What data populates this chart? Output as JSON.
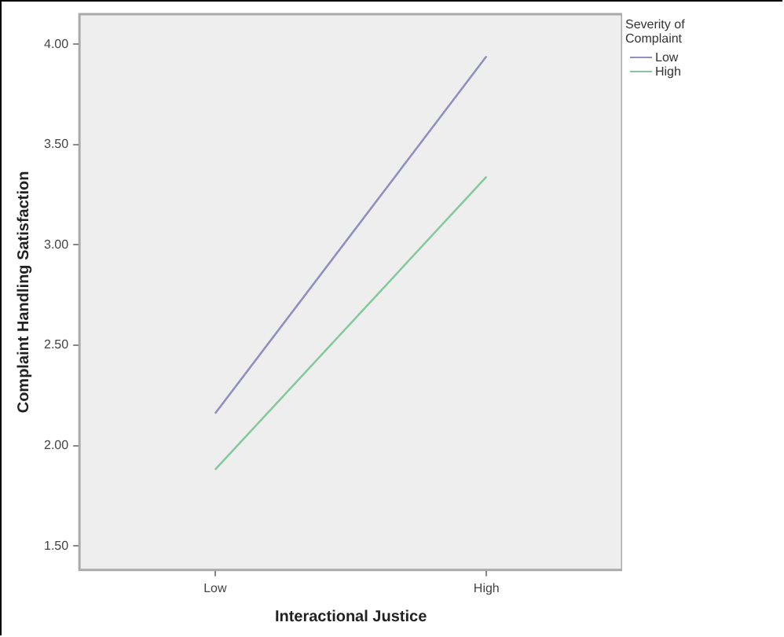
{
  "chart_data": {
    "type": "line",
    "xlabel": "Interactional Justice",
    "ylabel": "Complaint Handling Satisfaction",
    "legend_title": "Severity of Complaint",
    "categories": [
      "Low",
      "High"
    ],
    "series": [
      {
        "name": "Low",
        "color": "#8f8fc0",
        "values": [
          2.16,
          3.94
        ]
      },
      {
        "name": "High",
        "color": "#86c99c",
        "values": [
          1.88,
          3.34
        ]
      }
    ],
    "ylim": [
      1.38,
      4.15
    ],
    "yticks": [
      {
        "value": 1.5,
        "label": "1.50"
      },
      {
        "value": 2,
        "label": "2.00"
      },
      {
        "value": 2.5,
        "label": "2.50"
      },
      {
        "value": 3,
        "label": "3.00"
      },
      {
        "value": 3.5,
        "label": "3.50"
      },
      {
        "value": 4,
        "label": "4.00"
      }
    ],
    "grid": false,
    "legend": "top right",
    "marker": "none",
    "line_style": "solid"
  }
}
